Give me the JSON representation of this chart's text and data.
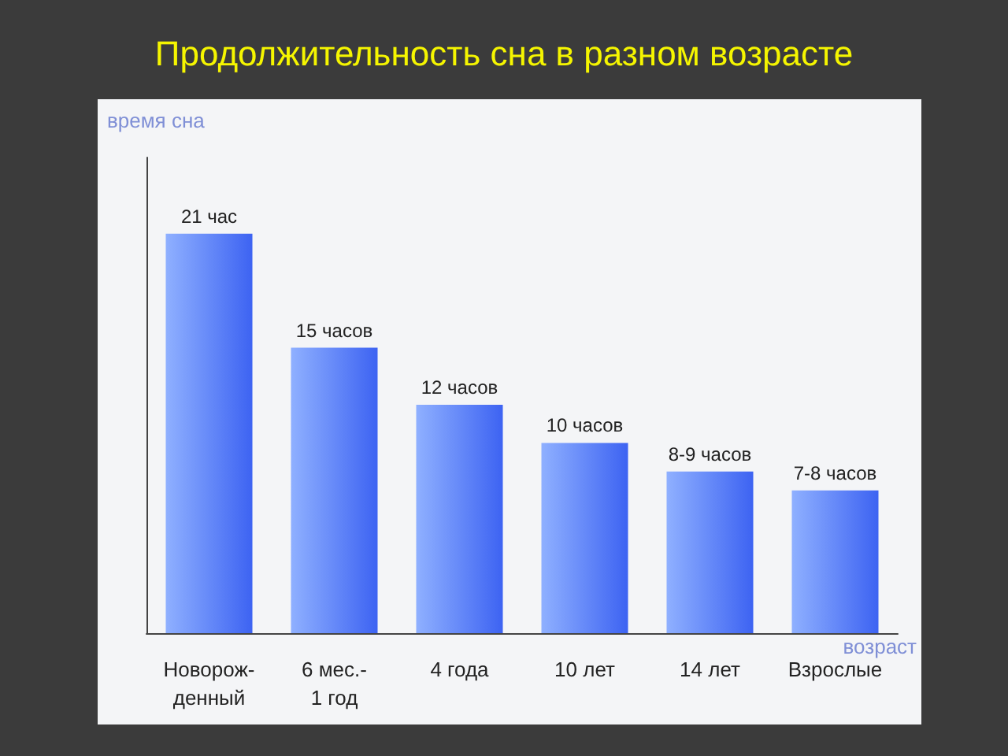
{
  "chart_data": {
    "type": "bar",
    "title": "Продолжительность сна в разном возрасте",
    "xlabel": "возраст",
    "ylabel": "время сна",
    "categories": [
      "Новорож-\nденный",
      "6 мес.-\n1 год",
      "4 года",
      "10 лет",
      "14 лет",
      "Взрослые"
    ],
    "values": [
      21,
      15,
      12,
      10,
      8.5,
      7.5
    ],
    "value_labels": [
      "21 час",
      "15 часов",
      "12 часов",
      "10 часов",
      "8-9 часов",
      "7-8 часов"
    ],
    "color": "#3d63f2",
    "grid": false
  }
}
